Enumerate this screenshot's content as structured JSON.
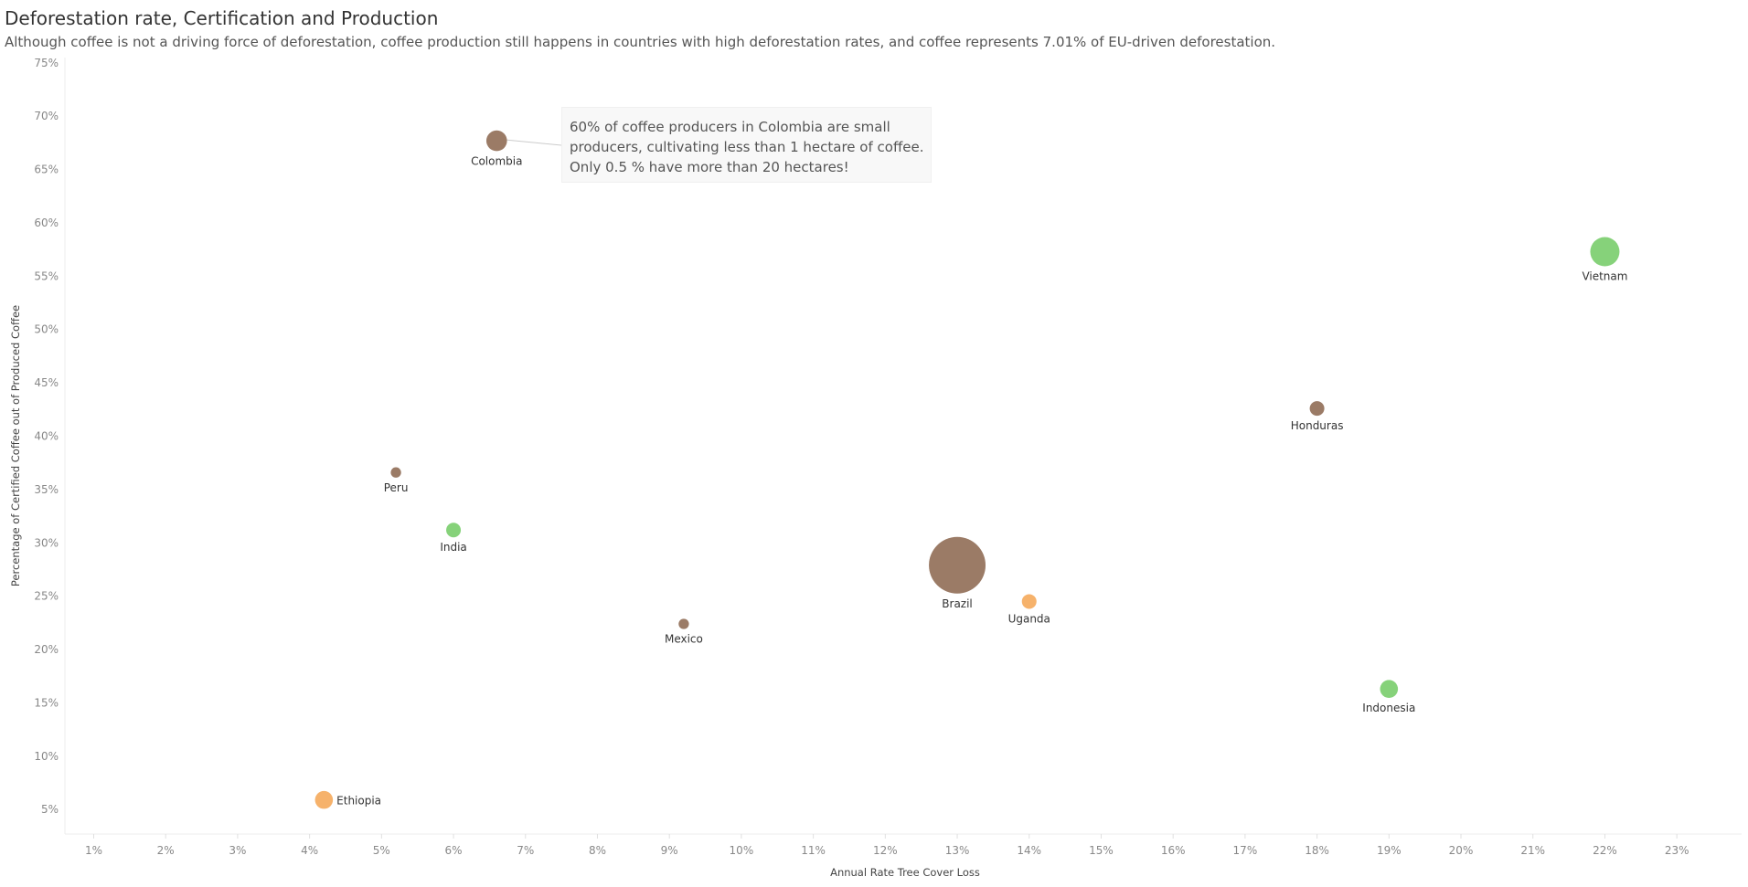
{
  "header": {
    "title": "Deforestation rate, Certification and Production",
    "subtitle": "Although coffee is not a driving force of deforestation, coffee production still happens in countries with high deforestation rates, and coffee represents 7.01% of EU-driven deforestation."
  },
  "annotation": {
    "lines": [
      "60% of coffee producers in Colombia are small",
      "producers, cultivating less than 1 hectare of coffee.",
      "Only 0.5 % have more than 20 hectares!"
    ]
  },
  "colors": {
    "brown": "#9b7b66",
    "green": "#86d27a",
    "orange": "#f6b26b"
  },
  "chart_data": {
    "type": "scatter",
    "xlabel": "Annual Rate Tree Cover Loss",
    "ylabel": "Percentage of Certified Coffee out of Produced Coffee",
    "xlim": [
      0.006,
      0.239
    ],
    "ylim": [
      0.027,
      0.755
    ],
    "x_ticks": [
      "1%",
      "2%",
      "3%",
      "4%",
      "5%",
      "6%",
      "7%",
      "8%",
      "9%",
      "10%",
      "11%",
      "12%",
      "13%",
      "14%",
      "15%",
      "16%",
      "17%",
      "18%",
      "19%",
      "20%",
      "21%",
      "22%",
      "23%"
    ],
    "y_ticks": [
      "5%",
      "10%",
      "15%",
      "20%",
      "25%",
      "30%",
      "35%",
      "40%",
      "45%",
      "50%",
      "55%",
      "60%",
      "65%",
      "70%",
      "75%"
    ],
    "grid": false,
    "points": [
      {
        "label": "Colombia",
        "x": 0.066,
        "y": 0.677,
        "size": 2,
        "color_group": "brown"
      },
      {
        "label": "Vietnam",
        "x": 0.22,
        "y": 0.573,
        "size": 4,
        "color_group": "green"
      },
      {
        "label": "Honduras",
        "x": 0.18,
        "y": 0.426,
        "size": 1,
        "color_group": "brown"
      },
      {
        "label": "Peru",
        "x": 0.052,
        "y": 0.366,
        "size": 0.5,
        "color_group": "brown"
      },
      {
        "label": "India",
        "x": 0.06,
        "y": 0.312,
        "size": 1,
        "color_group": "green"
      },
      {
        "label": "Brazil",
        "x": 0.13,
        "y": 0.279,
        "size": 15,
        "color_group": "brown"
      },
      {
        "label": "Uganda",
        "x": 0.14,
        "y": 0.245,
        "size": 1,
        "color_group": "orange"
      },
      {
        "label": "Mexico",
        "x": 0.092,
        "y": 0.224,
        "size": 0.5,
        "color_group": "brown"
      },
      {
        "label": "Indonesia",
        "x": 0.19,
        "y": 0.163,
        "size": 1.5,
        "color_group": "green"
      },
      {
        "label": "Ethiopia",
        "x": 0.042,
        "y": 0.059,
        "size": 1.5,
        "color_group": "orange"
      }
    ]
  }
}
